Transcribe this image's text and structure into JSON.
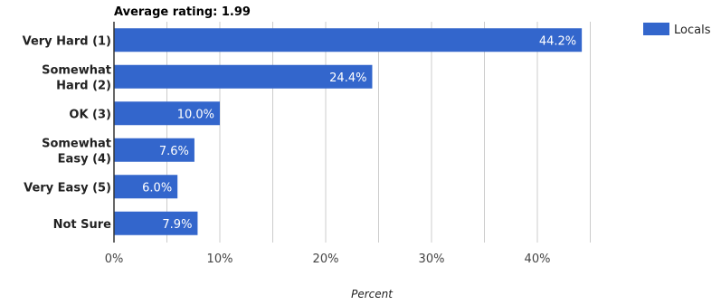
{
  "chart_data": {
    "type": "bar",
    "orientation": "horizontal",
    "title": "Average rating: 1.99",
    "categories": [
      [
        "Very Hard (1)"
      ],
      [
        "Somewhat",
        "Hard (2)"
      ],
      [
        "OK (3)"
      ],
      [
        "Somewhat",
        "Easy (4)"
      ],
      [
        "Very Easy (5)"
      ],
      [
        "Not Sure"
      ]
    ],
    "series": [
      {
        "name": "Locals",
        "values": [
          44.2,
          24.4,
          10.0,
          7.6,
          6.0,
          7.9
        ],
        "labels": [
          "44.2%",
          "24.4%",
          "10.0%",
          "7.6%",
          "6.0%",
          "7.9%"
        ]
      }
    ],
    "xlabel": "Percent",
    "xlim": [
      0,
      45
    ],
    "xticks": [
      0,
      10,
      20,
      30,
      40
    ],
    "xtick_labels": [
      "0%",
      "10%",
      "20%",
      "30%",
      "40%"
    ],
    "grid": true,
    "legend_position": "top-right",
    "colors": {
      "bar": "#3366cc",
      "grid": "#cccccc",
      "axis": "#333333"
    }
  }
}
